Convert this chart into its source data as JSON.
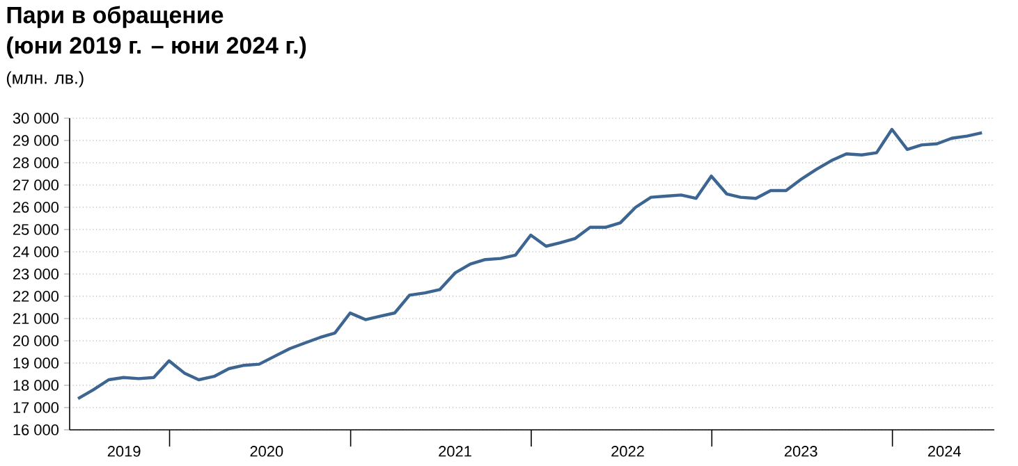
{
  "chart_data": {
    "type": "line",
    "title": "Пари в обращение",
    "subtitle": "(юни 2019 г. – юни 2024 г.)",
    "annotations": [
      "(млн. лв.)"
    ],
    "x": [
      "2019-06-30",
      "2019-07-31",
      "2019-08-31",
      "2019-09-30",
      "2019-10-31",
      "2019-11-30",
      "2019-12-31",
      "2020-01-31",
      "2020-02-29",
      "2020-03-31",
      "2020-04-30",
      "2020-05-31",
      "2020-06-30",
      "2020-07-31",
      "2020-08-31",
      "2020-09-30",
      "2020-10-31",
      "2020-11-30",
      "2020-12-31",
      "2021-01-31",
      "2021-02-28",
      "2021-03-31",
      "2021-04-30",
      "2021-05-31",
      "2021-06-30",
      "2021-07-31",
      "2021-08-31",
      "2021-09-30",
      "2021-10-31",
      "2021-11-30",
      "2021-12-31",
      "2022-01-31",
      "2022-02-28",
      "2022-03-31",
      "2022-04-30",
      "2022-05-31",
      "2022-06-30",
      "2022-07-31",
      "2022-08-31",
      "2022-09-30",
      "2022-10-31",
      "2022-11-30",
      "2022-12-31",
      "2023-01-31",
      "2023-02-28",
      "2023-03-31",
      "2023-04-30",
      "2023-05-31",
      "2023-06-30",
      "2023-07-31",
      "2023-08-31",
      "2023-09-30",
      "2023-10-31",
      "2023-11-30",
      "2023-12-31",
      "2024-01-31",
      "2024-02-29",
      "2024-03-31",
      "2024-04-30",
      "2024-05-31",
      "2024-06-30"
    ],
    "values": [
      17400,
      17800,
      18250,
      18350,
      18300,
      18350,
      19100,
      18550,
      18250,
      18400,
      18750,
      18900,
      18950,
      19300,
      19650,
      19900,
      20150,
      20350,
      21250,
      20950,
      21100,
      21250,
      22050,
      22150,
      22300,
      23050,
      23450,
      23650,
      23700,
      23850,
      24750,
      24250,
      24400,
      24600,
      25100,
      25100,
      25300,
      26000,
      26450,
      26500,
      26550,
      26400,
      27400,
      26600,
      26450,
      26400,
      26750,
      26750,
      27250,
      27700,
      28100,
      28400,
      28350,
      28450,
      29500,
      28600,
      28800,
      28850,
      29100,
      29200,
      29350
    ],
    "color": "#3d6592",
    "line_style": "solid",
    "grid": "y",
    "xlim": [
      "2019-06-13",
      "2024-07-25"
    ],
    "xticks": [
      {
        "value": "2019-10-01",
        "label": "2019"
      },
      {
        "value": "2020-01-01",
        "label": null
      },
      {
        "value": "2020-07-15",
        "label": "2020"
      },
      {
        "value": "2021-01-01",
        "label": null
      },
      {
        "value": "2021-07-31",
        "label": "2021"
      },
      {
        "value": "2022-01-01",
        "label": null
      },
      {
        "value": "2022-07-15",
        "label": "2022"
      },
      {
        "value": "2023-01-01",
        "label": null
      },
      {
        "value": "2023-06-30",
        "label": "2023"
      },
      {
        "value": "2024-01-01",
        "label": null
      },
      {
        "value": "2024-04-15",
        "label": "2024"
      }
    ],
    "ylim": [
      16000,
      30000
    ],
    "yticks": [
      {
        "value": 16000,
        "label": "16 000"
      },
      {
        "value": 17000,
        "label": "17 000"
      },
      {
        "value": 18000,
        "label": "18 000"
      },
      {
        "value": 19000,
        "label": "19 000"
      },
      {
        "value": 20000,
        "label": "20 000"
      },
      {
        "value": 21000,
        "label": "21 000"
      },
      {
        "value": 22000,
        "label": "22 000"
      },
      {
        "value": 23000,
        "label": "23 000"
      },
      {
        "value": 24000,
        "label": "24 000"
      },
      {
        "value": 25000,
        "label": "25 000"
      },
      {
        "value": 26000,
        "label": "26 000"
      },
      {
        "value": 27000,
        "label": "27 000"
      },
      {
        "value": 28000,
        "label": "28 000"
      },
      {
        "value": 29000,
        "label": "29 000"
      },
      {
        "value": 30000,
        "label": "30 000"
      }
    ]
  }
}
